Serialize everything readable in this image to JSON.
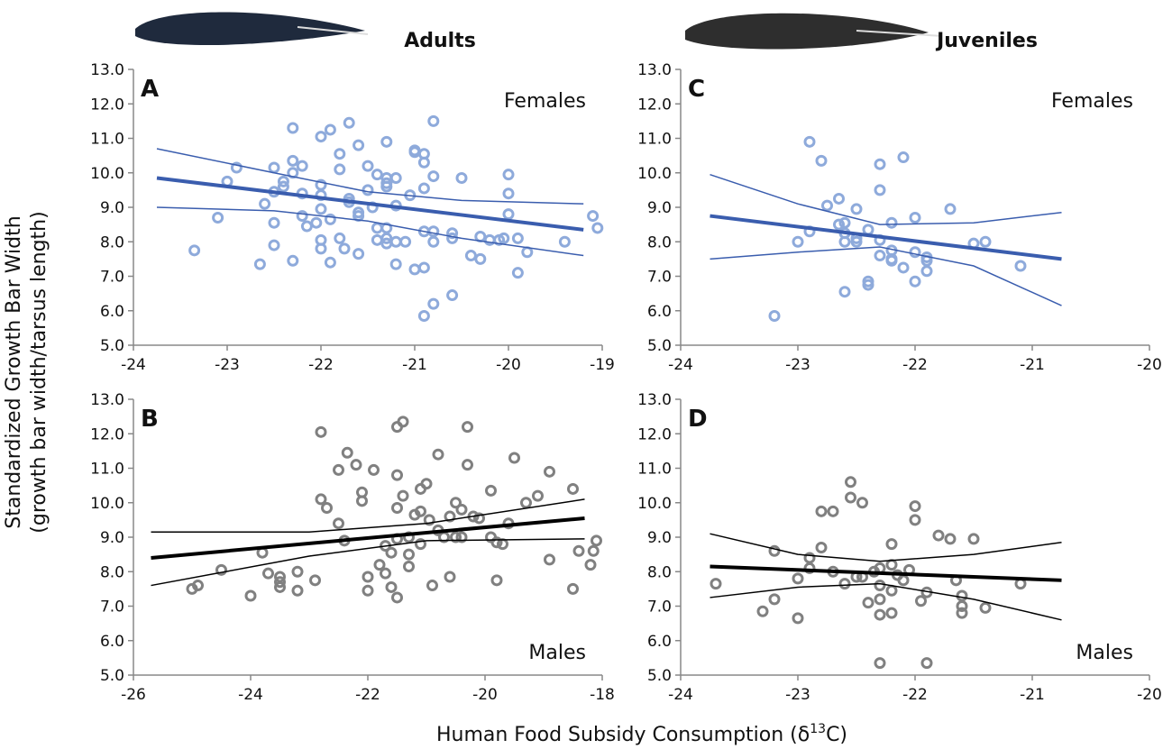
{
  "xlabel": [
    "Human Food Subsidy Consumption (δ",
    "13",
    "C)"
  ],
  "ylabel": [
    "Standardized Growth Bar Width",
    "(growth bar width/tarsus length)"
  ],
  "chart_data": [
    {
      "type": "scatter",
      "title": "Adults",
      "panel_label": "A",
      "group_label": "Females",
      "xlim": [
        -24,
        -19
      ],
      "xticks": [
        -24,
        -23,
        -22,
        -21,
        -20,
        -19
      ],
      "ylim": [
        5,
        13
      ],
      "yticks": [
        {
          "value": 5,
          "label": "5.0"
        },
        {
          "value": 6,
          "label": "6.0"
        },
        {
          "value": 7,
          "label": "7.0"
        },
        {
          "value": 8,
          "label": "8.0"
        },
        {
          "value": 9,
          "label": "9.0"
        },
        {
          "value": 10,
          "label": "10.0"
        },
        {
          "value": 11,
          "label": "11.0"
        },
        {
          "value": 12,
          "label": "12.0"
        },
        {
          "value": 13,
          "label": "13.0"
        }
      ],
      "series": [
        {
          "type": "scatter",
          "color": "#8eaadb",
          "x": [
            -23.35,
            -23.1,
            -23.0,
            -22.9,
            -22.65,
            -22.6,
            -22.5,
            -22.5,
            -22.5,
            -22.5,
            -22.4,
            -22.4,
            -22.3,
            -22.3,
            -22.3,
            -22.3,
            -22.2,
            -22.2,
            -22.2,
            -22.15,
            -22.05,
            -22.0,
            -22.0,
            -22.0,
            -22.0,
            -22.0,
            -22.0,
            -21.9,
            -21.9,
            -21.9,
            -21.8,
            -21.8,
            -21.8,
            -21.75,
            -21.7,
            -21.7,
            -21.7,
            -21.6,
            -21.6,
            -21.6,
            -21.6,
            -21.5,
            -21.5,
            -21.45,
            -21.4,
            -21.4,
            -21.4,
            -21.3,
            -21.3,
            -21.3,
            -21.3,
            -21.3,
            -21.3,
            -21.3,
            -21.2,
            -21.2,
            -21.2,
            -21.2,
            -21.1,
            -21.05,
            -21.0,
            -21.0,
            -21.0,
            -20.9,
            -20.9,
            -20.9,
            -20.9,
            -20.9,
            -20.9,
            -20.8,
            -20.8,
            -20.8,
            -20.8,
            -20.8,
            -20.6,
            -20.6,
            -20.6,
            -20.5,
            -20.4,
            -20.3,
            -20.3,
            -20.2,
            -20.1,
            -20.05,
            -20.0,
            -20.0,
            -20.0,
            -19.9,
            -19.9,
            -19.8,
            -19.4,
            -19.1,
            -19.05
          ],
          "values": [
            7.75,
            8.7,
            9.75,
            10.15,
            7.35,
            9.1,
            10.15,
            9.45,
            8.55,
            7.9,
            9.75,
            9.6,
            11.3,
            10.35,
            10.0,
            7.45,
            10.2,
            9.4,
            8.75,
            8.45,
            8.55,
            11.05,
            9.65,
            9.35,
            8.95,
            8.05,
            7.8,
            11.25,
            8.65,
            7.4,
            10.55,
            10.1,
            8.1,
            7.8,
            11.45,
            9.25,
            9.15,
            10.8,
            8.85,
            8.75,
            7.65,
            10.2,
            9.5,
            9.0,
            9.95,
            8.4,
            8.05,
            10.9,
            9.85,
            9.7,
            9.6,
            8.4,
            8.1,
            7.95,
            9.85,
            9.05,
            8.0,
            7.35,
            8.0,
            9.35,
            10.65,
            10.6,
            7.2,
            10.55,
            10.3,
            9.55,
            8.3,
            7.25,
            5.85,
            11.5,
            9.9,
            8.3,
            8.0,
            6.2,
            8.25,
            8.1,
            6.45,
            9.85,
            7.6,
            8.15,
            7.5,
            8.05,
            8.05,
            8.1,
            9.95,
            9.4,
            8.8,
            8.1,
            7.1,
            7.7,
            8.0,
            8.75,
            8.4
          ]
        },
        {
          "type": "line",
          "color": "#3a5dae",
          "width": 4,
          "x": [
            -23.75,
            -19.2
          ],
          "values": [
            9.85,
            8.35
          ]
        },
        {
          "type": "line",
          "color": "#3a5dae",
          "width": 1.5,
          "x": [
            -23.75,
            -22.5,
            -21.5,
            -20.5,
            -19.2
          ],
          "values": [
            10.7,
            10.0,
            9.45,
            9.2,
            9.1
          ]
        },
        {
          "type": "line",
          "color": "#3a5dae",
          "width": 1.5,
          "x": [
            -23.75,
            -22.5,
            -21.5,
            -20.5,
            -19.2
          ],
          "values": [
            9.0,
            8.9,
            8.6,
            8.1,
            7.6
          ]
        }
      ]
    },
    {
      "type": "scatter",
      "panel_label": "B",
      "group_label": "Males",
      "xlim": [
        -26,
        -18
      ],
      "xticks": [
        -26,
        -24,
        -22,
        -20,
        -18
      ],
      "ylim": [
        5,
        13
      ],
      "yticks": [
        {
          "value": 5,
          "label": "5.0"
        },
        {
          "value": 6,
          "label": "6.0"
        },
        {
          "value": 7,
          "label": "7.0"
        },
        {
          "value": 8,
          "label": "8.0"
        },
        {
          "value": 9,
          "label": "9.0"
        },
        {
          "value": 10,
          "label": "10.0"
        },
        {
          "value": 11,
          "label": "11.0"
        },
        {
          "value": 12,
          "label": "12.0"
        },
        {
          "value": 13,
          "label": "13.0"
        }
      ],
      "series": [
        {
          "type": "scatter",
          "color": "#808080",
          "x": [
            -25.0,
            -24.9,
            -24.5,
            -24.0,
            -23.8,
            -23.7,
            -23.5,
            -23.5,
            -23.5,
            -23.2,
            -23.2,
            -22.9,
            -22.8,
            -22.8,
            -22.7,
            -22.5,
            -22.5,
            -22.4,
            -22.35,
            -22.2,
            -22.1,
            -22.1,
            -22.0,
            -22.0,
            -21.9,
            -21.8,
            -21.7,
            -21.7,
            -21.6,
            -21.6,
            -21.5,
            -21.5,
            -21.5,
            -21.5,
            -21.5,
            -21.4,
            -21.4,
            -21.3,
            -21.3,
            -21.3,
            -21.2,
            -21.1,
            -21.1,
            -21.1,
            -21.0,
            -20.95,
            -20.9,
            -20.8,
            -20.8,
            -20.7,
            -20.6,
            -20.6,
            -20.5,
            -20.5,
            -20.4,
            -20.4,
            -20.3,
            -20.3,
            -20.2,
            -20.1,
            -19.9,
            -19.9,
            -19.8,
            -19.8,
            -19.7,
            -19.6,
            -19.5,
            -19.3,
            -19.1,
            -18.9,
            -18.9,
            -18.5,
            -18.5,
            -18.4,
            -18.2,
            -18.15,
            -18.1
          ],
          "values": [
            7.5,
            7.6,
            8.05,
            7.3,
            8.55,
            7.95,
            7.85,
            7.7,
            7.55,
            8.0,
            7.45,
            7.75,
            12.05,
            10.1,
            9.85,
            10.95,
            9.4,
            8.9,
            11.45,
            11.1,
            10.3,
            10.05,
            7.85,
            7.45,
            10.95,
            8.2,
            7.95,
            8.75,
            8.55,
            7.55,
            12.2,
            10.8,
            9.85,
            8.95,
            7.25,
            12.35,
            10.2,
            9.0,
            8.5,
            8.15,
            9.65,
            10.4,
            9.75,
            8.8,
            10.55,
            9.5,
            7.6,
            11.4,
            9.2,
            9.0,
            9.6,
            7.85,
            10.0,
            9.0,
            9.8,
            9.0,
            12.2,
            11.1,
            9.6,
            9.55,
            10.35,
            9.0,
            8.85,
            7.75,
            8.8,
            9.4,
            11.3,
            10.0,
            10.2,
            8.35,
            10.9,
            10.4,
            7.5,
            8.6,
            8.2,
            8.6,
            8.9
          ]
        },
        {
          "type": "line",
          "color": "#000000",
          "width": 4,
          "x": [
            -25.7,
            -18.3
          ],
          "values": [
            8.4,
            9.55
          ]
        },
        {
          "type": "line",
          "color": "#000000",
          "width": 1.5,
          "x": [
            -25.7,
            -23,
            -21,
            -18.3
          ],
          "values": [
            9.15,
            9.15,
            9.4,
            10.1
          ]
        },
        {
          "type": "line",
          "color": "#000000",
          "width": 1.5,
          "x": [
            -25.7,
            -23,
            -21,
            -18.3
          ],
          "values": [
            7.6,
            8.45,
            8.9,
            8.95
          ]
        }
      ]
    },
    {
      "type": "scatter",
      "title": "Juveniles",
      "panel_label": "C",
      "group_label": "Females",
      "xlim": [
        -24,
        -20
      ],
      "xticks": [
        -24,
        -23,
        -22,
        -21,
        -20
      ],
      "ylim": [
        5,
        13
      ],
      "yticks": [
        {
          "value": 5,
          "label": "5.0"
        },
        {
          "value": 6,
          "label": "6.0"
        },
        {
          "value": 7,
          "label": "7.0"
        },
        {
          "value": 8,
          "label": "8.0"
        },
        {
          "value": 9,
          "label": "9.0"
        },
        {
          "value": 10,
          "label": "10.0"
        },
        {
          "value": 11,
          "label": "11.0"
        },
        {
          "value": 12,
          "label": "12.0"
        },
        {
          "value": 13,
          "label": "13.0"
        }
      ],
      "series": [
        {
          "type": "scatter",
          "color": "#8eaadb",
          "x": [
            -23.2,
            -23.0,
            -22.9,
            -22.9,
            -22.8,
            -22.75,
            -22.65,
            -22.65,
            -22.6,
            -22.6,
            -22.6,
            -22.6,
            -22.5,
            -22.5,
            -22.5,
            -22.4,
            -22.4,
            -22.4,
            -22.3,
            -22.3,
            -22.3,
            -22.3,
            -22.2,
            -22.2,
            -22.2,
            -22.2,
            -22.1,
            -22.1,
            -22.0,
            -22.0,
            -22.0,
            -21.9,
            -21.9,
            -21.9,
            -21.7,
            -21.5,
            -21.4,
            -21.1
          ],
          "values": [
            5.85,
            8.0,
            10.9,
            8.3,
            10.35,
            9.05,
            9.25,
            8.5,
            8.55,
            8.25,
            8.0,
            6.55,
            8.95,
            8.1,
            8.0,
            8.35,
            6.85,
            6.75,
            10.25,
            9.5,
            7.6,
            8.05,
            8.55,
            7.75,
            7.5,
            7.45,
            10.45,
            7.25,
            8.7,
            7.7,
            6.85,
            7.55,
            7.45,
            7.15,
            8.95,
            7.95,
            8.0,
            7.3
          ]
        },
        {
          "type": "line",
          "color": "#3a5dae",
          "width": 4,
          "x": [
            -23.75,
            -20.75
          ],
          "values": [
            8.75,
            7.5
          ]
        },
        {
          "type": "line",
          "color": "#3a5dae",
          "width": 1.5,
          "x": [
            -23.75,
            -23,
            -22.3,
            -21.5,
            -20.75
          ],
          "values": [
            9.95,
            9.1,
            8.5,
            8.55,
            8.85
          ]
        },
        {
          "type": "line",
          "color": "#3a5dae",
          "width": 1.5,
          "x": [
            -23.75,
            -23,
            -22.3,
            -21.5,
            -20.75
          ],
          "values": [
            7.5,
            7.7,
            7.85,
            7.3,
            6.15
          ]
        }
      ]
    },
    {
      "type": "scatter",
      "panel_label": "D",
      "group_label": "Males",
      "xlim": [
        -24,
        -20
      ],
      "xticks": [
        -24,
        -23,
        -22,
        -21,
        -20
      ],
      "ylim": [
        5,
        13
      ],
      "yticks": [
        {
          "value": 5,
          "label": "5.0"
        },
        {
          "value": 6,
          "label": "6.0"
        },
        {
          "value": 7,
          "label": "7.0"
        },
        {
          "value": 8,
          "label": "8.0"
        },
        {
          "value": 9,
          "label": "9.0"
        },
        {
          "value": 10,
          "label": "10.0"
        },
        {
          "value": 11,
          "label": "11.0"
        },
        {
          "value": 12,
          "label": "12.0"
        },
        {
          "value": 13,
          "label": "13.0"
        }
      ],
      "series": [
        {
          "type": "scatter",
          "color": "#808080",
          "x": [
            -23.7,
            -23.3,
            -23.2,
            -23.2,
            -23.0,
            -23.0,
            -22.9,
            -22.9,
            -22.8,
            -22.8,
            -22.7,
            -22.7,
            -22.6,
            -22.55,
            -22.55,
            -22.5,
            -22.45,
            -22.45,
            -22.4,
            -22.35,
            -22.3,
            -22.3,
            -22.3,
            -22.3,
            -22.3,
            -22.2,
            -22.2,
            -22.2,
            -22.2,
            -22.15,
            -22.1,
            -22.05,
            -22.0,
            -22.0,
            -21.95,
            -21.9,
            -21.9,
            -21.8,
            -21.7,
            -21.65,
            -21.6,
            -21.6,
            -21.6,
            -21.4,
            -21.5,
            -21.1
          ],
          "values": [
            7.65,
            6.85,
            8.6,
            7.2,
            6.65,
            7.8,
            8.4,
            8.1,
            9.75,
            8.7,
            9.75,
            8.0,
            7.65,
            10.6,
            10.15,
            7.85,
            10.0,
            7.85,
            7.1,
            8.0,
            7.6,
            7.2,
            6.75,
            5.35,
            8.1,
            7.45,
            6.8,
            8.8,
            8.2,
            7.9,
            7.75,
            8.05,
            9.9,
            9.5,
            7.15,
            5.35,
            7.4,
            9.05,
            8.95,
            7.75,
            7.3,
            6.8,
            7.0,
            6.95,
            8.95,
            7.65
          ]
        },
        {
          "type": "line",
          "color": "#000000",
          "width": 4,
          "x": [
            -23.75,
            -20.75
          ],
          "values": [
            8.15,
            7.75
          ]
        },
        {
          "type": "line",
          "color": "#000000",
          "width": 1.5,
          "x": [
            -23.75,
            -23,
            -22.3,
            -21.5,
            -20.75
          ],
          "values": [
            9.1,
            8.5,
            8.3,
            8.5,
            8.85
          ]
        },
        {
          "type": "line",
          "color": "#000000",
          "width": 1.5,
          "x": [
            -23.75,
            -23,
            -22.3,
            -21.5,
            -20.75
          ],
          "values": [
            7.25,
            7.55,
            7.65,
            7.2,
            6.6
          ]
        }
      ]
    }
  ]
}
